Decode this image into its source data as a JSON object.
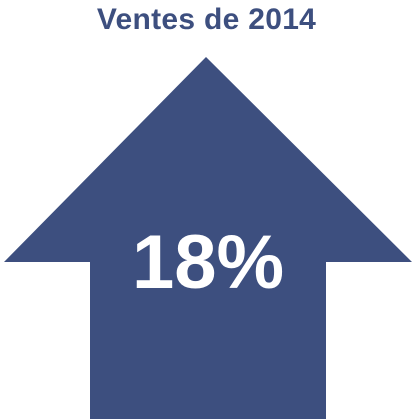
{
  "title": "Ventes de 2014",
  "value": "18%",
  "colors": {
    "accent": "#3d4f7f",
    "value_text": "#ffffff",
    "background": "#ffffff"
  },
  "icon": "up-arrow-icon"
}
